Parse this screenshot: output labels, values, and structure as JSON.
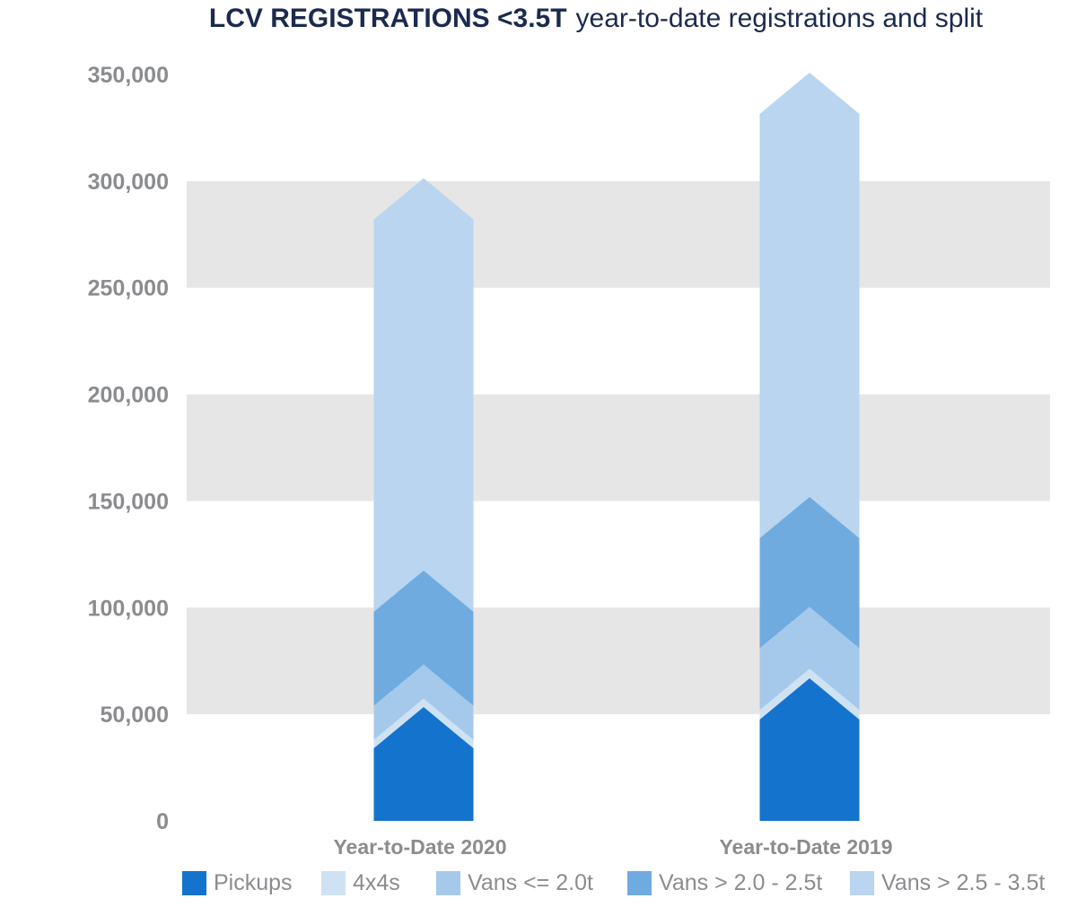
{
  "chart_data": {
    "type": "bar",
    "stacked": true,
    "title": "LCV REGISTRATIONS <3.5T",
    "subtitle": "year-to-date registrations and split",
    "categories": [
      "Year-to-Date 2020",
      "Year-to-Date 2019"
    ],
    "ylim": [
      0,
      350000
    ],
    "yticks": [
      0,
      50000,
      100000,
      150000,
      200000,
      250000,
      300000,
      350000
    ],
    "ytick_labels": [
      "0",
      "50,000",
      "100,000",
      "150,000",
      "200,000",
      "250,000",
      "300,000",
      "350,000"
    ],
    "grid": "alternating horizontal bands",
    "legend_position": "bottom",
    "series": [
      {
        "name": "Pickups",
        "color": "#1473cc",
        "values": [
          34000,
          47500
        ]
      },
      {
        "name": "4x4s",
        "color": "#cfe2f4",
        "values": [
          4000,
          4500
        ]
      },
      {
        "name": "Vans <= 2.0t",
        "color": "#a5c9ea",
        "values": [
          16000,
          29000
        ]
      },
      {
        "name": "Vans > 2.0 - 2.5t",
        "color": "#70abe0",
        "values": [
          44000,
          51500
        ]
      },
      {
        "name": "Vans > 2.5 - 3.5t",
        "color": "#b9d5ef",
        "values": [
          184000,
          199000
        ]
      }
    ]
  }
}
